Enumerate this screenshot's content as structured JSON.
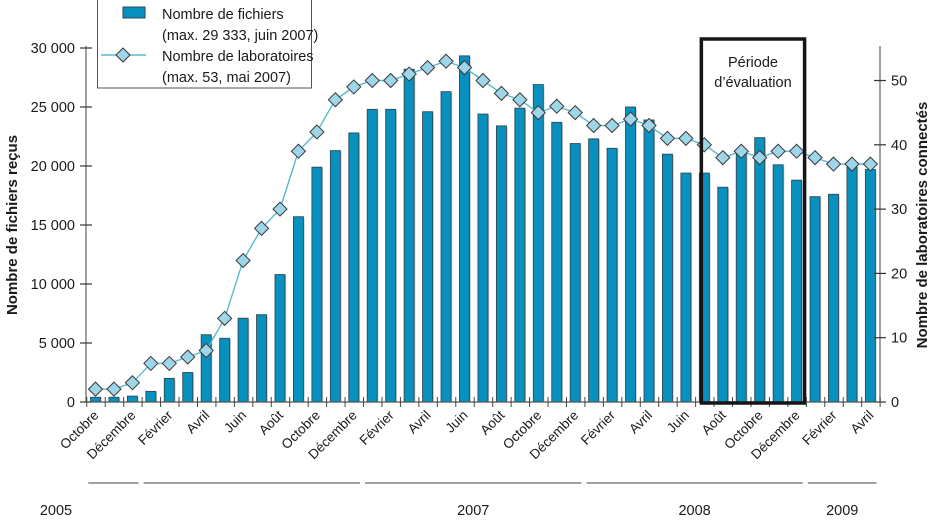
{
  "chart_data": {
    "type": "bar+line",
    "title": "",
    "xlabel": "",
    "ylabel": "Nombre de fichiers reçus",
    "y2label": "Nombre de laboratoires connectés",
    "ylim": [
      0,
      30000
    ],
    "y2lim": [
      0,
      55
    ],
    "yticks": [
      0,
      5000,
      10000,
      15000,
      20000,
      25000,
      30000
    ],
    "ytick_labels": [
      "0",
      "5 000",
      "10 000",
      "15 000",
      "20 000",
      "25 000",
      "30 000"
    ],
    "y2ticks": [
      0,
      10,
      20,
      30,
      40,
      50
    ],
    "y2tick_labels": [
      "0",
      "10",
      "20",
      "30",
      "40",
      "50"
    ],
    "grid": false,
    "legend_position": "top-left",
    "colors": {
      "bars": "#0890bf",
      "bar_outline": "#2d4a55",
      "line": "#5bbad4",
      "marker_fill": "#9fd5e8",
      "marker_outline": "#3a3a3a"
    },
    "categories": [
      "2005-10",
      "2005-11",
      "2005-12",
      "2006-01",
      "2006-02",
      "2006-03",
      "2006-04",
      "2006-05",
      "2006-06",
      "2006-07",
      "2006-08",
      "2006-09",
      "2006-10",
      "2006-11",
      "2006-12",
      "2007-01",
      "2007-02",
      "2007-03",
      "2007-04",
      "2007-05",
      "2007-06",
      "2007-07",
      "2007-08",
      "2007-09",
      "2007-10",
      "2007-11",
      "2007-12",
      "2008-01",
      "2008-02",
      "2008-03",
      "2008-04",
      "2008-05",
      "2008-06",
      "2008-07",
      "2008-08",
      "2008-09",
      "2008-10",
      "2008-11",
      "2008-12",
      "2009-01",
      "2009-02",
      "2009-03",
      "2009-04"
    ],
    "month_tick_labels": [
      {
        "index": 0,
        "label": "Octobre"
      },
      {
        "index": 2,
        "label": "Décembre"
      },
      {
        "index": 4,
        "label": "Février"
      },
      {
        "index": 6,
        "label": "Avril"
      },
      {
        "index": 8,
        "label": "Juin"
      },
      {
        "index": 10,
        "label": "Août"
      },
      {
        "index": 12,
        "label": "Octobre"
      },
      {
        "index": 14,
        "label": "Décembre"
      },
      {
        "index": 16,
        "label": "Février"
      },
      {
        "index": 18,
        "label": "Avril"
      },
      {
        "index": 20,
        "label": "Juin"
      },
      {
        "index": 22,
        "label": "Août"
      },
      {
        "index": 24,
        "label": "Octobre"
      },
      {
        "index": 26,
        "label": "Décembre"
      },
      {
        "index": 28,
        "label": "Février"
      },
      {
        "index": 30,
        "label": "Avril"
      },
      {
        "index": 32,
        "label": "Juin"
      },
      {
        "index": 34,
        "label": "Août"
      },
      {
        "index": 36,
        "label": "Octobre"
      },
      {
        "index": 38,
        "label": "Décembre"
      },
      {
        "index": 40,
        "label": "Février"
      },
      {
        "index": 42,
        "label": "Avril"
      }
    ],
    "year_groups": [
      {
        "label": "2005",
        "from": 0,
        "to": 2
      },
      {
        "label": "",
        "from": 3,
        "to": 14
      },
      {
        "label": "2007",
        "from": 15,
        "to": 26
      },
      {
        "label": "2008",
        "from": 27,
        "to": 38
      },
      {
        "label": "2009",
        "from": 39,
        "to": 42
      }
    ],
    "series": [
      {
        "name": "Nombre de fichiers",
        "axis": "left",
        "type": "bar",
        "values": [
          400,
          400,
          500,
          900,
          2000,
          2500,
          5700,
          5400,
          7100,
          7400,
          10800,
          15700,
          19900,
          21300,
          22800,
          24800,
          24800,
          28200,
          24600,
          26300,
          29333,
          24400,
          23400,
          24900,
          26900,
          23700,
          21900,
          22300,
          21500,
          25000,
          23900,
          21000,
          19400,
          19400,
          18200,
          21200,
          22400,
          20100,
          18800,
          17400,
          17600,
          20000,
          19700
        ]
      },
      {
        "name": "Nombre de laboratoires",
        "axis": "right",
        "type": "line",
        "values": [
          2,
          2,
          3,
          6,
          6,
          7,
          8,
          13,
          22,
          27,
          30,
          39,
          42,
          47,
          49,
          50,
          50,
          51,
          52,
          53,
          52,
          50,
          48,
          47,
          45,
          46,
          45,
          43,
          43,
          44,
          43,
          41,
          41,
          40,
          38,
          39,
          38,
          39,
          39,
          38,
          37,
          37,
          37
        ]
      }
    ],
    "legend": [
      {
        "label": "Nombre de fichiers",
        "sublabel": "(max. 29 333, juin 2007)"
      },
      {
        "label": "Nombre de laboratoires",
        "sublabel": "(max. 53, mai 2007)"
      }
    ],
    "annotations": [
      {
        "type": "box",
        "label_line1": "Période",
        "label_line2": "d’évaluation",
        "from_index": 33,
        "to_index": 38
      }
    ]
  }
}
